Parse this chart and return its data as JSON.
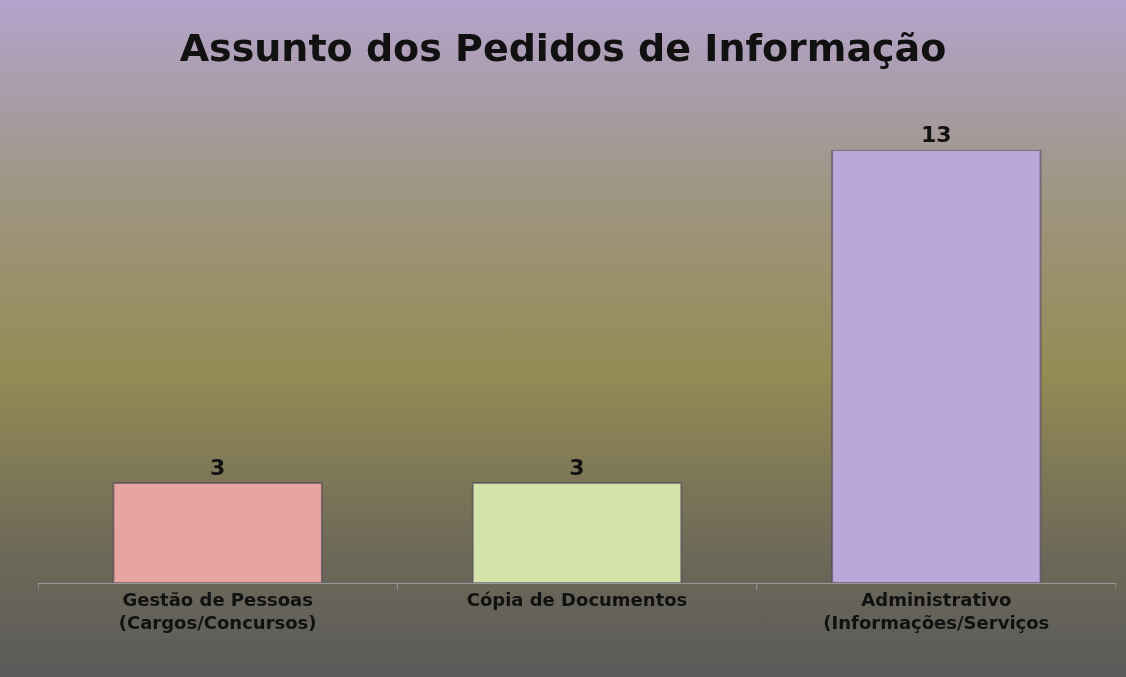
{
  "chart_data": {
    "type": "bar",
    "title": "Assunto dos Pedidos de Informação",
    "categories": [
      "Gestão de Pessoas\n(Cargos/Concursos)",
      "Cópia de Documentos",
      "Administrativo\n(Informações/Serviços"
    ],
    "values": [
      3,
      3,
      13
    ],
    "colors": [
      "#e6a5a0",
      "#d4e4a8",
      "#baa8d8"
    ],
    "data_labels": true
  }
}
